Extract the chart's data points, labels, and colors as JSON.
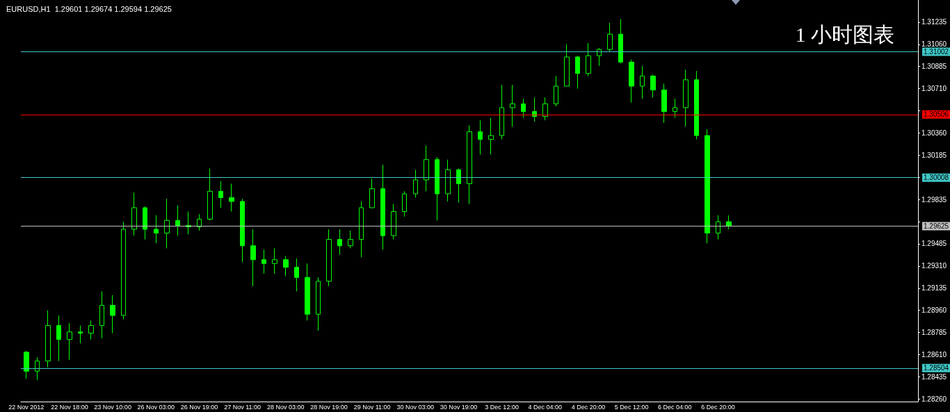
{
  "chart_data": {
    "type": "candlestick",
    "title": "EURUSD,H1  1.29601 1.29674 1.29594 1.29625",
    "annotations": [
      "1 小时图表"
    ],
    "color": "#00ff00",
    "categories": [
      "22 Nov 2012",
      null,
      null,
      null,
      "22 Nov 18:00",
      null,
      null,
      null,
      "23 Nov 10:00",
      null,
      null,
      null,
      "26 Nov 03:00",
      null,
      null,
      null,
      "26 Nov 19:00",
      null,
      null,
      null,
      "27 Nov 11:00",
      null,
      null,
      null,
      "28 Nov 03:00",
      null,
      null,
      null,
      "28 Nov 19:00",
      null,
      null,
      null,
      "29 Nov 11:00",
      null,
      null,
      null,
      "30 Nov 03:00",
      null,
      null,
      null,
      "30 Nov 19:00",
      null,
      null,
      null,
      "3 Dec 12:00",
      null,
      null,
      null,
      "4 Dec 04:00",
      null,
      null,
      null,
      "4 Dec 20:00",
      null,
      null,
      null,
      "5 Dec 12:00",
      null,
      null,
      null,
      "6 Dec 04:00",
      null,
      null,
      null,
      "6 Dec 20:00",
      null,
      null,
      null,
      null,
      null,
      null,
      null,
      null,
      null,
      null,
      null,
      null,
      null,
      null,
      null,
      null,
      null,
      null
    ],
    "ohlc": [
      [
        1.2863,
        1.2864,
        1.2842,
        1.2848
      ],
      [
        1.2848,
        1.2859,
        1.2841,
        1.2856
      ],
      [
        1.2856,
        1.2896,
        1.2851,
        1.2884
      ],
      [
        1.2884,
        1.2892,
        1.2856,
        1.2873
      ],
      [
        1.2873,
        1.2886,
        1.2857,
        1.2879
      ],
      [
        1.2879,
        1.2884,
        1.287,
        1.2878
      ],
      [
        1.2878,
        1.2888,
        1.2873,
        1.2884
      ],
      [
        1.2884,
        1.2911,
        1.2874,
        1.29
      ],
      [
        1.29,
        1.2908,
        1.2878,
        1.2892
      ],
      [
        1.2892,
        1.2966,
        1.2889,
        1.296
      ],
      [
        1.296,
        1.2989,
        1.2955,
        1.2977
      ],
      [
        1.2977,
        1.2978,
        1.2952,
        1.296
      ],
      [
        1.296,
        1.2971,
        1.2949,
        1.2957
      ],
      [
        1.2957,
        1.2984,
        1.2945,
        1.2967
      ],
      [
        1.2967,
        1.2979,
        1.2955,
        1.2963
      ],
      [
        1.2963,
        1.2974,
        1.2956,
        1.2962
      ],
      [
        1.2962,
        1.2972,
        1.2959,
        1.2968
      ],
      [
        1.2968,
        1.3008,
        1.2967,
        1.299
      ],
      [
        1.299,
        1.2998,
        1.2977,
        1.2985
      ],
      [
        1.2985,
        1.2996,
        1.2974,
        1.2982
      ],
      [
        1.2982,
        1.2984,
        1.2934,
        1.2947
      ],
      [
        1.2947,
        1.296,
        1.2915,
        1.2936
      ],
      [
        1.2936,
        1.2944,
        1.2925,
        1.2933
      ],
      [
        1.2933,
        1.2945,
        1.2925,
        1.2936
      ],
      [
        1.2936,
        1.2939,
        1.2923,
        1.293
      ],
      [
        1.293,
        1.2937,
        1.2911,
        1.2922
      ],
      [
        1.2922,
        1.2933,
        1.2888,
        1.2893
      ],
      [
        1.2893,
        1.2922,
        1.288,
        1.2919
      ],
      [
        1.2919,
        1.296,
        1.2915,
        1.2952
      ],
      [
        1.2952,
        1.296,
        1.294,
        1.2947
      ],
      [
        1.2947,
        1.2959,
        1.2945,
        1.2952
      ],
      [
        1.2952,
        1.2982,
        1.2938,
        1.2977
      ],
      [
        1.2977,
        1.3,
        1.2977,
        1.2992
      ],
      [
        1.2992,
        1.3011,
        1.2944,
        1.2955
      ],
      [
        1.2955,
        1.298,
        1.2952,
        1.2974
      ],
      [
        1.2974,
        1.299,
        1.297,
        1.2988
      ],
      [
        1.2988,
        1.3007,
        1.2985,
        1.2999
      ],
      [
        1.2999,
        1.3026,
        1.299,
        1.3015
      ],
      [
        1.3015,
        1.3017,
        1.2967,
        1.2988
      ],
      [
        1.2988,
        1.3015,
        1.2982,
        1.3007
      ],
      [
        1.3007,
        1.3008,
        1.2981,
        1.2996
      ],
      [
        1.2996,
        1.3042,
        1.298,
        1.3037
      ],
      [
        1.3037,
        1.3046,
        1.3019,
        1.3031
      ],
      [
        1.3031,
        1.3048,
        1.3019,
        1.3034
      ],
      [
        1.3034,
        1.3074,
        1.3031,
        1.3056
      ],
      [
        1.3056,
        1.3074,
        1.3041,
        1.3059
      ],
      [
        1.3059,
        1.3063,
        1.3048,
        1.3053
      ],
      [
        1.3053,
        1.3064,
        1.3045,
        1.3049
      ],
      [
        1.3049,
        1.3064,
        1.3046,
        1.3059
      ],
      [
        1.3059,
        1.3081,
        1.3057,
        1.3073
      ],
      [
        1.3073,
        1.3106,
        1.3073,
        1.3096
      ],
      [
        1.3096,
        1.3097,
        1.3071,
        1.3083
      ],
      [
        1.3083,
        1.3107,
        1.3081,
        1.3097
      ],
      [
        1.3097,
        1.3103,
        1.3089,
        1.3102
      ],
      [
        1.3102,
        1.3123,
        1.31,
        1.3114
      ],
      [
        1.3114,
        1.3126,
        1.3091,
        1.3092
      ],
      [
        1.3092,
        1.3094,
        1.306,
        1.3073
      ],
      [
        1.3073,
        1.3089,
        1.3063,
        1.3081
      ],
      [
        1.3081,
        1.3082,
        1.3064,
        1.307
      ],
      [
        1.307,
        1.3075,
        1.3044,
        1.3053
      ],
      [
        1.3053,
        1.3063,
        1.3048,
        1.3056
      ],
      [
        1.3056,
        1.3086,
        1.3041,
        1.3078
      ],
      [
        1.3078,
        1.3085,
        1.3031,
        1.3034
      ],
      [
        1.3034,
        1.3039,
        1.2949,
        1.2957
      ],
      [
        1.2957,
        1.2971,
        1.2952,
        1.2966
      ],
      [
        1.2966,
        1.2971,
        1.296,
        1.29625
      ],
      null,
      null,
      null,
      null,
      null,
      null,
      null,
      null,
      null,
      null,
      null,
      null,
      null,
      null,
      null,
      null,
      null
    ],
    "ylim": [
      1.2824,
      1.3141
    ],
    "yticks": [
      {
        "value": 1.2826,
        "label": "1.28260"
      },
      {
        "value": 1.28435,
        "label": "1.28435"
      },
      {
        "value": 1.2861,
        "label": "1.28610"
      },
      {
        "value": 1.28785,
        "label": "1.28785"
      },
      {
        "value": 1.2896,
        "label": "1.28960"
      },
      {
        "value": 1.29135,
        "label": "1.29135"
      },
      {
        "value": 1.2931,
        "label": "1.29310"
      },
      {
        "value": 1.29485,
        "label": "1.29485"
      },
      {
        "value": 1.2966,
        "label": null
      },
      {
        "value": 1.29835,
        "label": "1.29835"
      },
      {
        "value": 1.3001,
        "label": null
      },
      {
        "value": 1.30185,
        "label": "1.30185"
      },
      {
        "value": 1.3036,
        "label": "1.30360"
      },
      {
        "value": 1.30535,
        "label": null
      },
      {
        "value": 1.3071,
        "label": "1.30710"
      },
      {
        "value": 1.30885,
        "label": "1.30885"
      },
      {
        "value": 1.3106,
        "label": "1.31060"
      },
      {
        "value": 1.31235,
        "label": "1.31235"
      }
    ],
    "ref_lines": [
      {
        "axis": "y",
        "value": 1.31002,
        "label": "1.31002",
        "color": "#40c8c8"
      },
      {
        "axis": "y",
        "value": 1.30506,
        "label": "1.30506",
        "color": "#ff0000"
      },
      {
        "axis": "y",
        "value": 1.30008,
        "label": "1.30008",
        "color": "#40c8c8"
      },
      {
        "axis": "y",
        "value": 1.29625,
        "label": "1.29625",
        "color": "#c0c0c0"
      },
      {
        "axis": "y",
        "value": 1.28504,
        "label": "1.28504",
        "color": "#40c8c8"
      }
    ]
  }
}
